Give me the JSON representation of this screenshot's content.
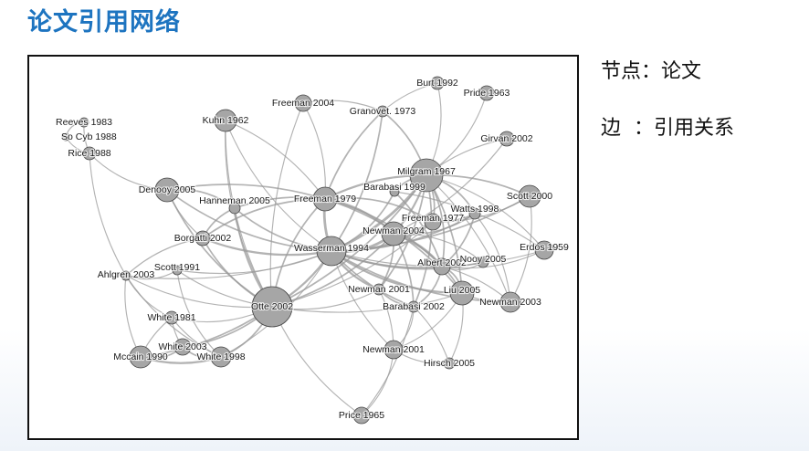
{
  "title": "论文引用网络",
  "legend": {
    "node": {
      "key": "节点",
      "sep": "：",
      "value": "论文"
    },
    "edge": {
      "key": "边",
      "sep": "  ：",
      "value": "引用关系"
    }
  },
  "graph": {
    "node_fill": "#a6a6a6",
    "node_stroke": "#444444",
    "edge_color": "#9a9a9a",
    "nodes": [
      {
        "id": "reeves1983",
        "label": "Reeves 1983"
      },
      {
        "id": "socyb1988",
        "label": "So Cyb 1988"
      },
      {
        "id": "rice1988",
        "label": "Rice 1988"
      },
      {
        "id": "kuhn1962",
        "label": "Kuhn 1962"
      },
      {
        "id": "freeman2004",
        "label": "Freeman 2004"
      },
      {
        "id": "burt1992",
        "label": "Burt 1992"
      },
      {
        "id": "pride1963",
        "label": "Pride 1963"
      },
      {
        "id": "granovet1973",
        "label": "Granovet. 1973"
      },
      {
        "id": "girvan2002",
        "label": "Girvan 2002"
      },
      {
        "id": "milgram1967",
        "label": "Milgram 1967"
      },
      {
        "id": "denooy2005",
        "label": "Denooy 2005"
      },
      {
        "id": "hanneman2005",
        "label": "Hanneman 2005"
      },
      {
        "id": "freeman1979",
        "label": "Freeman 1979"
      },
      {
        "id": "barabasi1999",
        "label": "Barabasi 1999"
      },
      {
        "id": "scott2000",
        "label": "Scott 2000"
      },
      {
        "id": "watts1998",
        "label": "Watts 1998"
      },
      {
        "id": "freeman1977",
        "label": "Freeman 1977"
      },
      {
        "id": "newman2004",
        "label": "Newman 2004"
      },
      {
        "id": "borgatti2002",
        "label": "Borgatti 2002"
      },
      {
        "id": "wasserman1994",
        "label": "Wasserman 1994"
      },
      {
        "id": "erdos1959",
        "label": "Erdos 1959"
      },
      {
        "id": "ahlgren2003",
        "label": "Ahlgren 2003"
      },
      {
        "id": "scott1991",
        "label": "Scott 1991"
      },
      {
        "id": "albert2002",
        "label": "Albert 2002"
      },
      {
        "id": "nooy2005",
        "label": "Nooy 2005"
      },
      {
        "id": "newman2001a",
        "label": "Newman 2001"
      },
      {
        "id": "liu2005",
        "label": "Liu 2005"
      },
      {
        "id": "newman2003",
        "label": "Newman 2003"
      },
      {
        "id": "otte2002",
        "label": "Otte 2002"
      },
      {
        "id": "barabasi2002",
        "label": "Barabasi 2002"
      },
      {
        "id": "white1981",
        "label": "White 1981"
      },
      {
        "id": "white2003",
        "label": "White 2003"
      },
      {
        "id": "mccain1990",
        "label": "Mccain 1990"
      },
      {
        "id": "white1998",
        "label": "White 1998"
      },
      {
        "id": "newman2001b",
        "label": "Newman 2001"
      },
      {
        "id": "hirsch2005",
        "label": "Hirsch 2005"
      },
      {
        "id": "price1965",
        "label": "Price 1965"
      }
    ],
    "edges": [
      [
        "wasserman1994",
        "freeman1979",
        4
      ],
      [
        "wasserman1994",
        "milgram1967",
        4
      ],
      [
        "wasserman1994",
        "newman2004",
        4
      ],
      [
        "wasserman1994",
        "otte2002",
        3
      ],
      [
        "wasserman1994",
        "borgatti2002",
        3
      ],
      [
        "wasserman1994",
        "freeman1977",
        3
      ],
      [
        "wasserman1994",
        "albert2002",
        3
      ],
      [
        "wasserman1994",
        "newman2001a",
        3
      ],
      [
        "wasserman1994",
        "liu2005",
        3
      ],
      [
        "wasserman1994",
        "barabasi2002",
        2
      ],
      [
        "wasserman1994",
        "hanneman2005",
        2
      ],
      [
        "wasserman1994",
        "denooy2005",
        2
      ],
      [
        "wasserman1994",
        "scott2000",
        2
      ],
      [
        "wasserman1994",
        "watts1998",
        2
      ],
      [
        "wasserman1994",
        "barabasi1999",
        2
      ],
      [
        "wasserman1994",
        "granovet1973",
        2
      ],
      [
        "wasserman1994",
        "newman2003",
        2
      ],
      [
        "wasserman1994",
        "kuhn1962",
        1
      ],
      [
        "wasserman1994",
        "ahlgren2003",
        1
      ],
      [
        "wasserman1994",
        "scott1991",
        1
      ],
      [
        "wasserman1994",
        "nooy2005",
        2
      ],
      [
        "wasserman1994",
        "newman2001b",
        1
      ],
      [
        "wasserman1994",
        "white1998",
        1
      ],
      [
        "wasserman1994",
        "erdos1959",
        1
      ],
      [
        "freeman1979",
        "milgram1967",
        3
      ],
      [
        "freeman1979",
        "newman2004",
        3
      ],
      [
        "freeman1979",
        "otte2002",
        2
      ],
      [
        "freeman1979",
        "granovet1973",
        2
      ],
      [
        "freeman1979",
        "freeman2004",
        1
      ],
      [
        "freeman1979",
        "borgatti2002",
        2
      ],
      [
        "freeman1979",
        "hanneman2005",
        2
      ],
      [
        "freeman1979",
        "kuhn1962",
        1
      ],
      [
        "freeman1979",
        "freeman1977",
        2
      ],
      [
        "freeman1979",
        "denooy2005",
        2
      ],
      [
        "freeman1979",
        "albert2002",
        2
      ],
      [
        "freeman1979",
        "liu2005",
        2
      ],
      [
        "milgram1967",
        "newman2004",
        3
      ],
      [
        "milgram1967",
        "barabasi1999",
        2
      ],
      [
        "milgram1967",
        "watts1998",
        2
      ],
      [
        "milgram1967",
        "scott2000",
        2
      ],
      [
        "milgram1967",
        "freeman1977",
        2
      ],
      [
        "milgram1967",
        "albert2002",
        2
      ],
      [
        "milgram1967",
        "liu2005",
        2
      ],
      [
        "milgram1967",
        "granovet1973",
        2
      ],
      [
        "milgram1967",
        "burt1992",
        1
      ],
      [
        "milgram1967",
        "girvan2002",
        1
      ],
      [
        "milgram1967",
        "newman2001a",
        2
      ],
      [
        "milgram1967",
        "barabasi2002",
        2
      ],
      [
        "milgram1967",
        "newman2003",
        1
      ],
      [
        "milgram1967",
        "otte2002",
        2
      ],
      [
        "milgram1967",
        "erdos1959",
        1
      ],
      [
        "newman2004",
        "freeman1977",
        2
      ],
      [
        "newman2004",
        "albert2002",
        2
      ],
      [
        "newman2004",
        "liu2005",
        2
      ],
      [
        "newman2004",
        "barabasi2002",
        2
      ],
      [
        "newman2004",
        "newman2001a",
        2
      ],
      [
        "newman2004",
        "watts1998",
        2
      ],
      [
        "newman2004",
        "girvan2002",
        1
      ],
      [
        "newman2004",
        "otte2002",
        2
      ],
      [
        "newman2004",
        "nooy2005",
        1
      ],
      [
        "albert2002",
        "barabasi1999",
        2
      ],
      [
        "albert2002",
        "erdos1959",
        1
      ],
      [
        "albert2002",
        "liu2005",
        2
      ],
      [
        "albert2002",
        "newman2003",
        1
      ],
      [
        "albert2002",
        "watts1998",
        2
      ],
      [
        "albert2002",
        "barabasi2002",
        2
      ],
      [
        "liu2005",
        "newman2003",
        1
      ],
      [
        "liu2005",
        "hirsch2005",
        1
      ],
      [
        "liu2005",
        "newman2001b",
        1
      ],
      [
        "liu2005",
        "otte2002",
        1
      ],
      [
        "newman2001a",
        "barabasi2002",
        2
      ],
      [
        "newman2001a",
        "otte2002",
        1
      ],
      [
        "newman2001a",
        "newman2001b",
        1
      ],
      [
        "otte2002",
        "borgatti2002",
        2
      ],
      [
        "otte2002",
        "white1998",
        2
      ],
      [
        "otte2002",
        "mccain1990",
        2
      ],
      [
        "otte2002",
        "white2003",
        2
      ],
      [
        "otte2002",
        "white1981",
        1
      ],
      [
        "otte2002",
        "scott1991",
        1
      ],
      [
        "otte2002",
        "ahlgren2003",
        1
      ],
      [
        "otte2002",
        "denooy2005",
        2
      ],
      [
        "otte2002",
        "hanneman2005",
        2
      ],
      [
        "otte2002",
        "price1965",
        1
      ],
      [
        "otte2002",
        "kuhn1962",
        1
      ],
      [
        "otte2002",
        "freeman1977",
        1
      ],
      [
        "mccain1990",
        "white1998",
        3
      ],
      [
        "mccain1990",
        "white2003",
        2
      ],
      [
        "mccain1990",
        "white1981",
        1
      ],
      [
        "mccain1990",
        "ahlgren2003",
        1
      ],
      [
        "white1998",
        "white2003",
        2
      ],
      [
        "white1998",
        "white1981",
        1
      ],
      [
        "white1998",
        "ahlgren2003",
        1
      ],
      [
        "white1998",
        "scott1991",
        1
      ],
      [
        "white2003",
        "white1981",
        1
      ],
      [
        "ahlgren2003",
        "white1981",
        1
      ],
      [
        "ahlgren2003",
        "scott1991",
        1
      ],
      [
        "ahlgren2003",
        "rice1988",
        1
      ],
      [
        "ahlgren2003",
        "borgatti2002",
        1
      ],
      [
        "denooy2005",
        "hanneman2005",
        2
      ],
      [
        "denooy2005",
        "borgatti2002",
        1
      ],
      [
        "hanneman2005",
        "borgatti2002",
        2
      ],
      [
        "reeves1983",
        "socyb1988",
        1
      ],
      [
        "reeves1983",
        "rice1988",
        1
      ],
      [
        "socyb1988",
        "rice1988",
        1
      ],
      [
        "rice1988",
        "denooy2005",
        1
      ],
      [
        "granovet1973",
        "burt1992",
        1
      ],
      [
        "granovet1973",
        "freeman2004",
        1
      ],
      [
        "pride1963",
        "milgram1967",
        1
      ],
      [
        "freeman2004",
        "otte2002",
        1
      ],
      [
        "kuhn1962",
        "otte2002",
        1
      ],
      [
        "price1965",
        "newman2001b",
        1
      ],
      [
        "price1965",
        "barabasi2002",
        1
      ],
      [
        "newman2001b",
        "hirsch2005",
        1
      ],
      [
        "newman2001b",
        "barabasi2002",
        1
      ],
      [
        "hirsch2005",
        "barabasi2002",
        1
      ],
      [
        "newman2003",
        "watts1998",
        1
      ],
      [
        "newman2003",
        "scott2000",
        1
      ],
      [
        "erdos1959",
        "barabasi1999",
        1
      ],
      [
        "scott2000",
        "freeman1977",
        1
      ],
      [
        "nooy2005",
        "albert2002",
        1
      ],
      [
        "watts1998",
        "freeman1977",
        1
      ]
    ]
  }
}
